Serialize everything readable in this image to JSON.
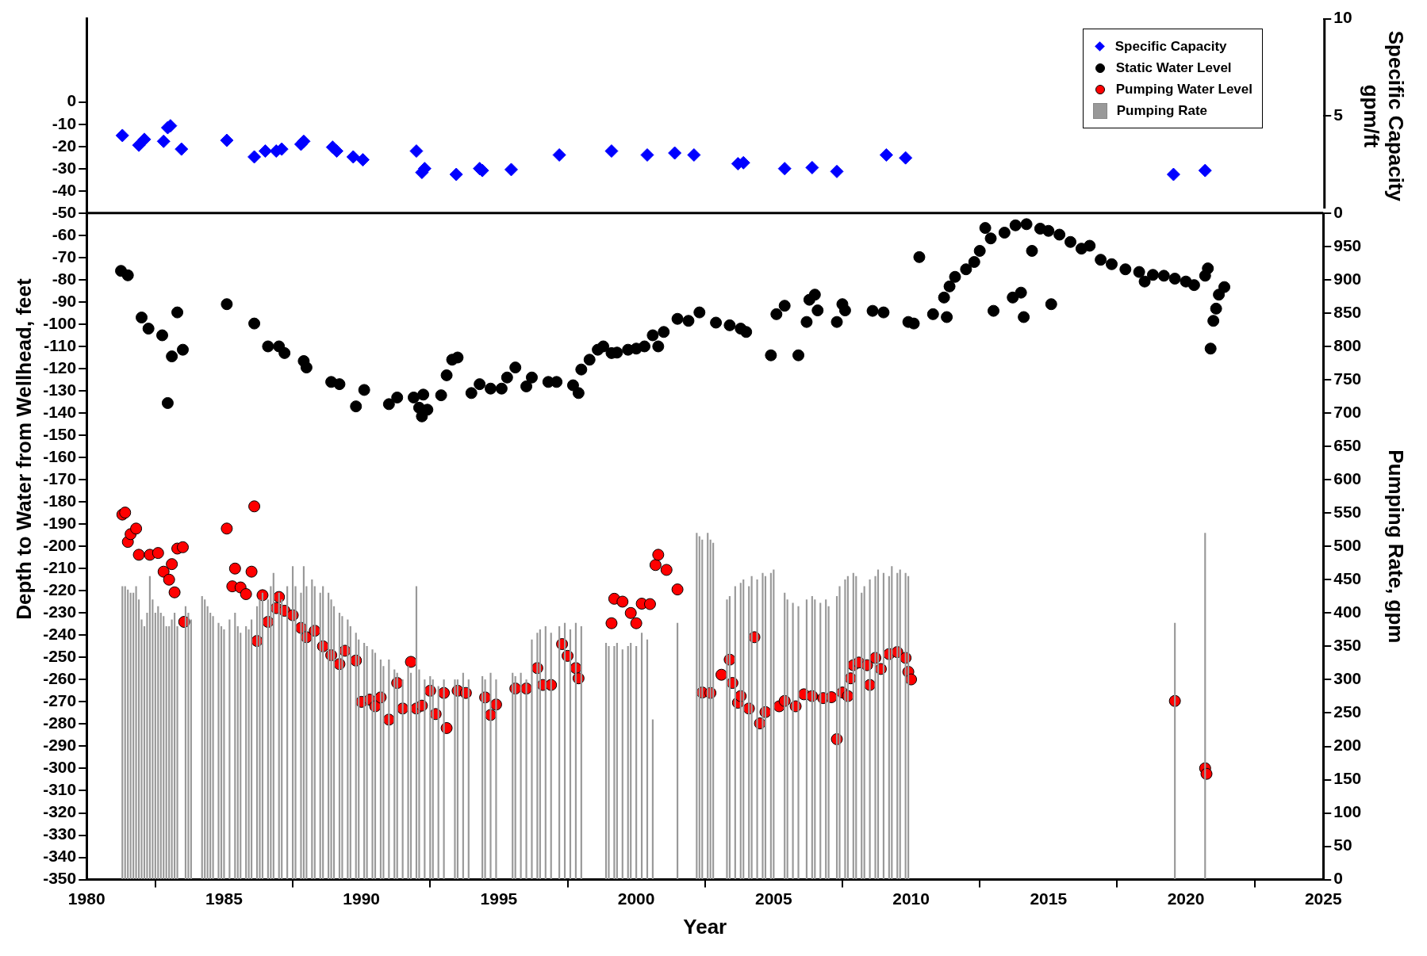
{
  "chart_data": {
    "type": "scatter",
    "xlabel": "Year",
    "ylabel": "Depth to Water from Wellhead, feet",
    "y2label": "Pumping Rate, gpm",
    "y3label": "Specific Capacity\ngpm/ft",
    "xlim": [
      1980,
      2025
    ],
    "xticks": [
      1980,
      1985,
      1990,
      1995,
      2000,
      2005,
      2010,
      2015,
      2020,
      2025
    ],
    "ylim": [
      -350,
      37.5
    ],
    "yticks": [
      -350,
      -340,
      -330,
      -320,
      -310,
      -300,
      -290,
      -280,
      -270,
      -260,
      -250,
      -240,
      -230,
      -220,
      -210,
      -200,
      -190,
      -180,
      -170,
      -160,
      -150,
      -140,
      -130,
      -120,
      -110,
      -100,
      -90,
      -80,
      -70,
      -60,
      -50,
      -40,
      -30,
      -20,
      -10,
      0
    ],
    "y2lim": [
      0,
      1000
    ],
    "y2ticks": [
      0,
      50,
      100,
      150,
      200,
      250,
      300,
      350,
      400,
      450,
      500,
      550,
      600,
      650,
      700,
      750,
      800,
      850,
      900,
      950
    ],
    "y3lim": [
      0,
      10
    ],
    "y3ticks": [
      0,
      5,
      10
    ],
    "grid": false,
    "legend": "top right",
    "ref_lines": [
      {
        "axis": "y",
        "value": -50,
        "color": "#000000"
      }
    ],
    "series": [
      {
        "name": "Specific Capacity",
        "axis": "y3",
        "marker": "diamond",
        "color": "#0000ff",
        "x": [
          1981.3,
          1981.9,
          1982.1,
          1982.8,
          1982.95,
          1983.05,
          1983.45,
          1985.1,
          1986.1,
          1986.5,
          1986.9,
          1987.1,
          1987.8,
          1987.9,
          1988.95,
          1989.1,
          1989.7,
          1990.05,
          1992.0,
          1992.2,
          1992.3,
          1993.45,
          1994.3,
          1994.4,
          1995.45,
          1997.2,
          1999.1,
          2000.4,
          2001.4,
          2002.1,
          2003.7,
          2003.9,
          2005.4,
          2006.4,
          2007.3,
          2009.1,
          2009.8,
          2019.55,
          2020.7
        ],
        "values": [
          4.0,
          3.5,
          3.8,
          3.7,
          4.4,
          4.5,
          3.3,
          3.75,
          2.9,
          3.2,
          3.2,
          3.3,
          3.55,
          3.7,
          3.4,
          3.2,
          2.9,
          2.75,
          3.2,
          2.1,
          2.3,
          2.0,
          2.3,
          2.2,
          2.25,
          3.0,
          3.2,
          3.0,
          3.1,
          3.0,
          2.55,
          2.6,
          2.3,
          2.35,
          2.15,
          3.0,
          2.85,
          2.0,
          2.2
        ]
      },
      {
        "name": "Static Water Level",
        "marker": "circle",
        "color": "#000000",
        "x": [
          1981.25,
          1981.5,
          1982.0,
          1982.25,
          1982.75,
          1982.95,
          1983.1,
          1983.3,
          1983.5,
          1985.1,
          1986.1,
          1986.6,
          1987.0,
          1987.2,
          1987.9,
          1988.0,
          1988.9,
          1989.2,
          1989.8,
          1990.1,
          1991.0,
          1991.3,
          1991.9,
          1992.1,
          1992.2,
          1992.4,
          1992.25,
          1992.9,
          1993.1,
          1993.3,
          1993.5,
          1994.0,
          1994.3,
          1994.7,
          1995.1,
          1995.3,
          1995.6,
          1996.0,
          1996.2,
          1996.8,
          1997.1,
          1997.7,
          1997.9,
          1998.0,
          1998.3,
          1998.6,
          1998.8,
          1999.1,
          1999.3,
          1999.7,
          2000.0,
          2000.3,
          2000.6,
          2000.8,
          2001.0,
          2001.5,
          2001.9,
          2002.3,
          2002.9,
          2003.4,
          2003.8,
          2004.0,
          2004.9,
          2005.1,
          2005.4,
          2005.9,
          2006.2,
          2006.3,
          2006.5,
          2006.6,
          2007.3,
          2007.5,
          2007.6,
          2008.6,
          2009.0,
          2009.9,
          2010.1,
          2010.3,
          2010.8,
          2011.3,
          2011.2,
          2011.4,
          2011.6,
          2012.0,
          2012.3,
          2012.5,
          2012.7,
          2012.9,
          2013.0,
          2013.4,
          2013.7,
          2013.8,
          2014.1,
          2014.0,
          2014.2,
          2014.4,
          2014.7,
          2015.0,
          2015.1,
          2015.4,
          2015.8,
          2016.2,
          2016.5,
          2016.9,
          2017.3,
          2017.8,
          2018.3,
          2018.5,
          2018.8,
          2019.2,
          2019.6,
          2020.0,
          2020.3,
          2020.7,
          2020.8,
          2020.9,
          2021.0,
          2021.1,
          2021.2,
          2021.4
        ],
        "values": [
          -76,
          -78,
          -97,
          -102,
          -105,
          -135.5,
          -114.5,
          -94.7,
          -111.5,
          -91,
          -99.7,
          -110,
          -110,
          -113,
          -116.6,
          -119.5,
          -126,
          -127,
          -137,
          -129.6,
          -136,
          -133,
          -133,
          -137.6,
          -141.5,
          -138.5,
          -131.7,
          -132,
          -123,
          -116,
          -115,
          -131,
          -127,
          -129,
          -129,
          -124,
          -119.5,
          -128,
          -124,
          -126,
          -126,
          -127.5,
          -131,
          -120.4,
          -116,
          -111.5,
          -110,
          -113,
          -112.8,
          -111.5,
          -111,
          -110,
          -105,
          -110,
          -103.5,
          -97.6,
          -98.5,
          -94.7,
          -99.3,
          -100.5,
          -102,
          -103.5,
          -114,
          -95.5,
          -91.7,
          -114,
          -99,
          -89,
          -86.7,
          -93.8,
          -99,
          -91,
          -93.8,
          -94,
          -94.7,
          -99,
          -99.7,
          -69.8,
          -95.5,
          -96.8,
          -88,
          -83,
          -78.7,
          -75.3,
          -72,
          -67,
          -56.7,
          -61.4,
          -94,
          -58.8,
          -88,
          -55.5,
          -96.8,
          -85.8,
          -55,
          -67,
          -57,
          -58,
          -91,
          -59.7,
          -63,
          -66,
          -64.7,
          -71,
          -73,
          -75.3,
          -76.5,
          -80.8,
          -77.8,
          -78.2,
          -79.5,
          -80.8,
          -82.4,
          -78.2,
          -74.9,
          -111,
          -98.5,
          -93,
          -86.7,
          -83.3
        ]
      },
      {
        "name": "Pumping Water Level",
        "marker": "circle",
        "color": "#ff0000",
        "x": [
          1981.3,
          1981.4,
          1981.5,
          1981.6,
          1981.8,
          1981.9,
          1982.3,
          1982.6,
          1982.8,
          1983.0,
          1983.2,
          1983.1,
          1983.3,
          1983.5,
          1983.55,
          1985.1,
          1985.3,
          1985.4,
          1985.6,
          1985.8,
          1986.0,
          1986.1,
          1986.2,
          1986.4,
          1986.6,
          1986.9,
          1987.0,
          1987.2,
          1987.5,
          1987.8,
          1988.0,
          1988.3,
          1988.6,
          1988.9,
          1989.2,
          1989.4,
          1989.8,
          1990.0,
          1990.3,
          1990.5,
          1990.7,
          1991.0,
          1991.3,
          1991.5,
          1991.8,
          1992.0,
          1992.2,
          1992.5,
          1992.7,
          1993.0,
          1993.1,
          1993.5,
          1993.8,
          1994.5,
          1994.7,
          1994.9,
          1995.6,
          1996.0,
          1996.4,
          1996.6,
          1996.9,
          1997.3,
          1997.5,
          1997.8,
          1997.9,
          1999.1,
          1999.2,
          1999.5,
          1999.8,
          2000.0,
          2000.2,
          2000.5,
          2000.7,
          2000.8,
          2001.1,
          2001.5,
          2002.4,
          2002.7,
          2003.1,
          2003.4,
          2003.5,
          2003.7,
          2003.8,
          2004.1,
          2004.3,
          2004.5,
          2004.7,
          2005.2,
          2005.4,
          2005.8,
          2006.1,
          2006.4,
          2006.8,
          2007.1,
          2007.3,
          2007.5,
          2007.7,
          2007.8,
          2007.9,
          2008.1,
          2008.4,
          2008.5,
          2008.7,
          2008.9,
          2009.2,
          2009.5,
          2009.8,
          2009.9,
          2010.0,
          2019.6,
          2020.7,
          2020.75
        ],
        "values": [
          -185.7,
          -184.8,
          -198,
          -194.5,
          -192,
          -203.8,
          -203.8,
          -203,
          -211.4,
          -215,
          -220.7,
          -208,
          -201,
          -200.4,
          -234,
          -192,
          -218,
          -210,
          -218.5,
          -221.5,
          -211.4,
          -182,
          -242.6,
          -222,
          -234,
          -227.8,
          -222.8,
          -229,
          -231,
          -236.7,
          -240.9,
          -238,
          -245,
          -249,
          -253,
          -247,
          -251.4,
          -270,
          -269,
          -272,
          -268,
          -278,
          -261.5,
          -273,
          -252,
          -273,
          -271.7,
          -265,
          -275.5,
          -266,
          -281.8,
          -265,
          -266,
          -268,
          -275.9,
          -271.2,
          -264,
          -264,
          -254.8,
          -262.4,
          -262.4,
          -244,
          -249.3,
          -254.8,
          -259.4,
          -234.6,
          -223.6,
          -224.9,
          -230,
          -234.6,
          -225.8,
          -226,
          -208.4,
          -203.8,
          -210.6,
          -219.4,
          -265.8,
          -266,
          -257.8,
          -251,
          -261.5,
          -270.4,
          -267.4,
          -273,
          -240.9,
          -279.7,
          -274.6,
          -272,
          -269.6,
          -272,
          -266.6,
          -267.4,
          -268.3,
          -267.9,
          -286.8,
          -265.8,
          -267.4,
          -259.4,
          -253.5,
          -252.3,
          -253.5,
          -262.4,
          -250.2,
          -255.2,
          -248.5,
          -247.6,
          -250.2,
          -256.5,
          -259.9,
          -269.6,
          -299.9,
          -302.4
        ]
      },
      {
        "name": "Pumping Rate",
        "type": "bar",
        "axis": "y2",
        "color": "#999999",
        "x": [
          1981.3,
          1981.4,
          1981.5,
          1981.6,
          1981.7,
          1981.8,
          1981.9,
          1982.0,
          1982.1,
          1982.2,
          1982.3,
          1982.4,
          1982.5,
          1982.6,
          1982.7,
          1982.8,
          1982.9,
          1983.0,
          1983.1,
          1983.2,
          1983.3,
          1983.6,
          1983.7,
          1983.8,
          1984.2,
          1984.3,
          1984.4,
          1984.5,
          1984.6,
          1984.8,
          1984.9,
          1985.0,
          1985.2,
          1985.4,
          1985.5,
          1985.6,
          1985.8,
          1985.9,
          1986.0,
          1986.2,
          1986.3,
          1986.4,
          1986.6,
          1986.7,
          1986.8,
          1987.0,
          1987.1,
          1987.3,
          1987.5,
          1987.6,
          1987.8,
          1987.9,
          1988.0,
          1988.2,
          1988.3,
          1988.5,
          1988.6,
          1988.8,
          1988.9,
          1989.0,
          1989.2,
          1989.3,
          1989.5,
          1989.6,
          1989.8,
          1989.9,
          1990.1,
          1990.2,
          1990.4,
          1990.5,
          1990.7,
          1990.8,
          1991.0,
          1991.2,
          1991.3,
          1991.5,
          1991.7,
          1991.8,
          1992.0,
          1992.1,
          1992.3,
          1992.5,
          1992.6,
          1992.8,
          1993.0,
          1993.4,
          1993.5,
          1993.7,
          1993.9,
          1994.4,
          1994.5,
          1994.7,
          1994.9,
          1995.5,
          1995.6,
          1995.8,
          1996.0,
          1996.2,
          1996.4,
          1996.5,
          1996.7,
          1996.9,
          1997.2,
          1997.4,
          1997.6,
          1997.8,
          1998.0,
          1998.9,
          1999.0,
          1999.2,
          1999.3,
          1999.5,
          1999.7,
          1999.8,
          2000.0,
          2000.2,
          2000.4,
          2000.6,
          2001.5,
          2002.2,
          2002.3,
          2002.4,
          2002.6,
          2002.7,
          2002.8,
          2003.3,
          2003.4,
          2003.6,
          2003.8,
          2003.9,
          2004.1,
          2004.2,
          2004.4,
          2004.6,
          2004.7,
          2004.9,
          2005.0,
          2005.4,
          2005.5,
          2005.7,
          2005.9,
          2006.2,
          2006.4,
          2006.5,
          2006.7,
          2006.9,
          2007.0,
          2007.3,
          2007.4,
          2007.6,
          2007.7,
          2007.9,
          2008.0,
          2008.2,
          2008.3,
          2008.5,
          2008.7,
          2008.8,
          2009.0,
          2009.2,
          2009.3,
          2009.5,
          2009.6,
          2009.8,
          2009.9,
          2019.6,
          2020.7
        ],
        "values": [
          440,
          440,
          435,
          430,
          430,
          440,
          420,
          390,
          380,
          400,
          455,
          420,
          400,
          410,
          400,
          395,
          380,
          380,
          390,
          400,
          380,
          410,
          400,
          390,
          425,
          420,
          410,
          400,
          395,
          385,
          380,
          375,
          390,
          400,
          380,
          370,
          380,
          375,
          390,
          410,
          420,
          430,
          420,
          440,
          460,
          430,
          420,
          440,
          470,
          440,
          430,
          470,
          440,
          450,
          440,
          430,
          440,
          430,
          420,
          410,
          400,
          395,
          390,
          380,
          370,
          360,
          355,
          350,
          345,
          340,
          330,
          320,
          330,
          315,
          310,
          300,
          320,
          310,
          440,
          315,
          300,
          305,
          300,
          290,
          300,
          300,
          300,
          310,
          300,
          305,
          300,
          310,
          300,
          310,
          305,
          310,
          300,
          360,
          370,
          375,
          380,
          370,
          380,
          385,
          375,
          385,
          380,
          355,
          350,
          350,
          355,
          345,
          350,
          355,
          350,
          370,
          360,
          240,
          385,
          520,
          515,
          510,
          520,
          510,
          505,
          420,
          425,
          440,
          445,
          450,
          440,
          455,
          450,
          460,
          455,
          460,
          465,
          430,
          420,
          415,
          410,
          420,
          425,
          420,
          415,
          420,
          410,
          425,
          440,
          450,
          455,
          460,
          455,
          430,
          440,
          450,
          455,
          465,
          460,
          455,
          470,
          460,
          465,
          460,
          455,
          385,
          520
        ]
      }
    ]
  }
}
